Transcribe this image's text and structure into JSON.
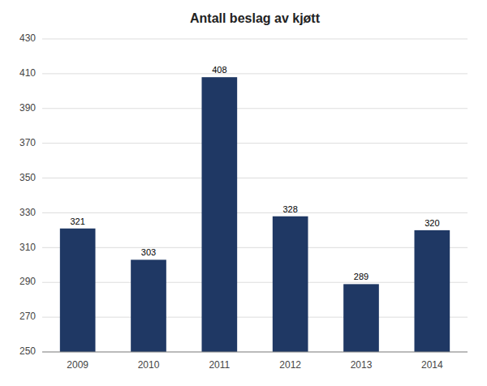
{
  "chart_data": {
    "type": "bar",
    "title": "Antall beslag av kjøtt",
    "categories": [
      "2009",
      "2010",
      "2011",
      "2012",
      "2013",
      "2014"
    ],
    "values": [
      321,
      303,
      408,
      328,
      289,
      320
    ],
    "color": "#1F3864",
    "ylim": [
      250,
      430
    ],
    "yticks": [
      250,
      270,
      290,
      310,
      330,
      350,
      370,
      390,
      410,
      430
    ],
    "grid": true,
    "data_labels": true
  }
}
